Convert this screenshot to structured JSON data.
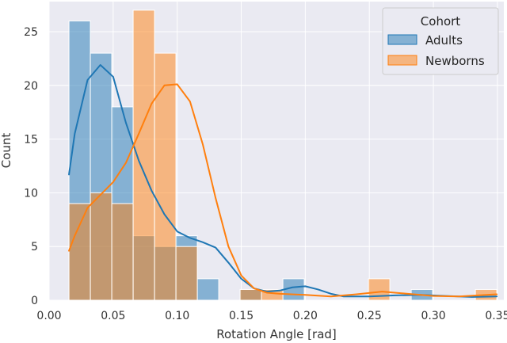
{
  "chart_data": {
    "type": "histogram",
    "xlabel": "Rotation Angle [rad]",
    "ylabel": "Count",
    "xlim": [
      0.0,
      0.355
    ],
    "ylim": [
      0,
      27.8
    ],
    "xticks": [
      "0.00",
      "0.05",
      "0.10",
      "0.15",
      "0.20",
      "0.25",
      "0.30",
      "0.35"
    ],
    "xtick_values": [
      0.0,
      0.05,
      0.1,
      0.15,
      0.2,
      0.25,
      0.3,
      0.35
    ],
    "yticks": [
      "0",
      "5",
      "10",
      "15",
      "20",
      "25"
    ],
    "ytick_values": [
      0,
      5,
      10,
      15,
      20,
      25
    ],
    "grid": true,
    "bin_edges": [
      0.0155,
      0.0322,
      0.0489,
      0.0656,
      0.0823,
      0.099,
      0.1157,
      0.1324,
      0.1491,
      0.1658,
      0.1825,
      0.1992,
      0.2159,
      0.2326,
      0.2493,
      0.266,
      0.2827,
      0.2994,
      0.3161,
      0.3328,
      0.3495
    ],
    "legend": {
      "title": "Cohort",
      "position": "top-right"
    },
    "series": [
      {
        "name": "Adults",
        "color": "#1f77b4",
        "counts": [
          26,
          23,
          18,
          6,
          5,
          6,
          2,
          0,
          1,
          0,
          2,
          0,
          0,
          0,
          0,
          0,
          1,
          0,
          0,
          0
        ],
        "kde": [
          [
            0.0155,
            11.7
          ],
          [
            0.02,
            15.5
          ],
          [
            0.03,
            20.5
          ],
          [
            0.04,
            21.9
          ],
          [
            0.05,
            20.8
          ],
          [
            0.06,
            16.5
          ],
          [
            0.07,
            13.0
          ],
          [
            0.08,
            10.2
          ],
          [
            0.09,
            8.0
          ],
          [
            0.1,
            6.4
          ],
          [
            0.11,
            5.8
          ],
          [
            0.12,
            5.4
          ],
          [
            0.13,
            4.9
          ],
          [
            0.14,
            3.5
          ],
          [
            0.15,
            2.0
          ],
          [
            0.16,
            1.1
          ],
          [
            0.17,
            0.8
          ],
          [
            0.18,
            0.9
          ],
          [
            0.19,
            1.2
          ],
          [
            0.2,
            1.3
          ],
          [
            0.21,
            1.0
          ],
          [
            0.22,
            0.6
          ],
          [
            0.23,
            0.35
          ],
          [
            0.25,
            0.35
          ],
          [
            0.27,
            0.45
          ],
          [
            0.29,
            0.5
          ],
          [
            0.31,
            0.4
          ],
          [
            0.33,
            0.3
          ],
          [
            0.3495,
            0.35
          ]
        ]
      },
      {
        "name": "Newborns",
        "color": "#ff7f0e",
        "counts": [
          9,
          10,
          9,
          27,
          23,
          5,
          0,
          0,
          1,
          1,
          0,
          0,
          0,
          0,
          2,
          0,
          0,
          0,
          0,
          1
        ],
        "kde": [
          [
            0.0155,
            4.6
          ],
          [
            0.02,
            6.0
          ],
          [
            0.03,
            8.6
          ],
          [
            0.04,
            9.8
          ],
          [
            0.05,
            11.0
          ],
          [
            0.06,
            12.8
          ],
          [
            0.07,
            15.5
          ],
          [
            0.08,
            18.3
          ],
          [
            0.09,
            20.0
          ],
          [
            0.1,
            20.1
          ],
          [
            0.11,
            18.5
          ],
          [
            0.12,
            14.5
          ],
          [
            0.13,
            9.5
          ],
          [
            0.14,
            5.0
          ],
          [
            0.15,
            2.3
          ],
          [
            0.16,
            1.1
          ],
          [
            0.17,
            0.7
          ],
          [
            0.18,
            0.6
          ],
          [
            0.2,
            0.5
          ],
          [
            0.22,
            0.35
          ],
          [
            0.24,
            0.55
          ],
          [
            0.26,
            0.8
          ],
          [
            0.28,
            0.6
          ],
          [
            0.3,
            0.4
          ],
          [
            0.32,
            0.35
          ],
          [
            0.3495,
            0.55
          ]
        ]
      }
    ]
  }
}
